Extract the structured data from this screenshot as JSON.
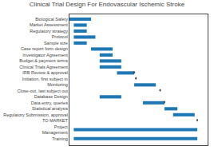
{
  "chart_data": {
    "type": "gantt",
    "title": "Clinical Trial Design For Endovascular Ischemic Stroke",
    "categories": [
      "Biological Safety",
      "Market Assessment",
      "Regulatory strategy",
      "Protocol",
      "Sample size",
      "Case report form design",
      "Investigator Agreement",
      "Budget & payment terms",
      "Clinical Trials Agreement",
      "IRB Review & approval",
      "Initiation, first subject in",
      "Monitoring",
      "Close-out, last subject out",
      "Database Design",
      "Data entry, queries",
      "Statistical analysis",
      "Regulatory Submission, approval",
      "TO MARKET",
      "Project\nManagement",
      "Training"
    ],
    "orientation": "horizontal",
    "series": [
      {
        "type": "bar",
        "start": [
          0.0,
          0.5,
          0.5,
          0.5,
          0.5,
          2.5,
          3.5,
          3.5,
          3.5,
          5.5,
          null,
          7.5,
          null,
          3.5,
          8.5,
          11.0,
          12.0,
          null,
          0.5,
          0.5
        ],
        "values": [
          2.5,
          1.5,
          1.5,
          2.5,
          1.5,
          2.5,
          1.5,
          2.5,
          2.5,
          2.0,
          0,
          2.5,
          0,
          2.5,
          2.5,
          1.5,
          2.5,
          0,
          14.3,
          14.3
        ]
      },
      {
        "type": "milestone",
        "values": [
          null,
          null,
          null,
          null,
          null,
          null,
          null,
          null,
          null,
          7.5,
          7.7,
          null,
          10.5,
          null,
          11.0,
          null,
          null,
          14.8,
          null,
          null
        ]
      }
    ],
    "xlim": [
      0,
      16
    ],
    "xticks": [],
    "tick_labels": "y",
    "grid": false
  }
}
